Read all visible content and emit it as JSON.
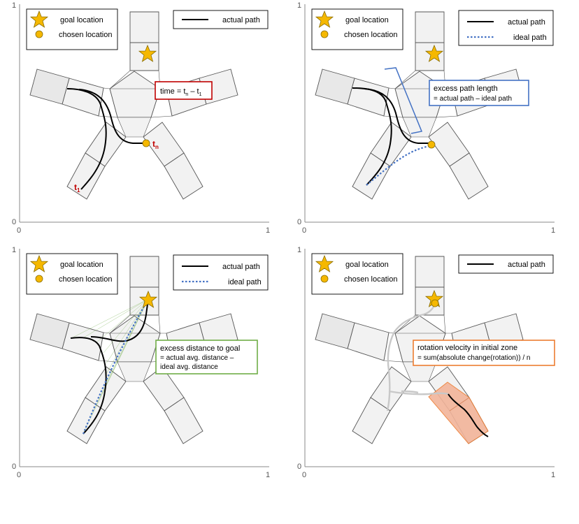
{
  "legend": {
    "goal_location": "goal location",
    "chosen_location": "chosen location",
    "actual_path": "actual path",
    "ideal_path": "ideal path"
  },
  "axis_ticks": {
    "zero": "0",
    "one": "1"
  },
  "colors": {
    "star": "#f5b800",
    "marker": "#f5b800",
    "actual_path": "#000000",
    "ideal_path": "#4472c4",
    "time_box": "#c00000",
    "excess_path_box": "#4472c4",
    "excess_distance_box": "#70ad47",
    "rotation_box": "#ed7d31",
    "initial_zone_fill": "#f2b49a",
    "maze_fill": "#f2f2f2",
    "maze_stroke": "#555555"
  },
  "panels": [
    {
      "id": "time",
      "box_line1_prefix": "time = t",
      "box_line1_sub1": "n",
      "box_line1_mid": " – t",
      "box_line1_sub2": "1",
      "start_label": "t",
      "start_label_sub": "1",
      "end_label": "t",
      "end_label_sub": "n"
    },
    {
      "id": "excess-path-length",
      "box_line1": "excess path length",
      "box_line2": "= actual path – ideal path"
    },
    {
      "id": "excess-distance-to-goal",
      "box_line1": "excess distance to goal",
      "box_line2": "= actual avg. distance –",
      "box_line3": "ideal avg. distance"
    },
    {
      "id": "rotation-velocity",
      "box_line1": "rotation velocity in initial zone",
      "box_line2": "= sum(absolute change(rotation)) / n"
    }
  ]
}
